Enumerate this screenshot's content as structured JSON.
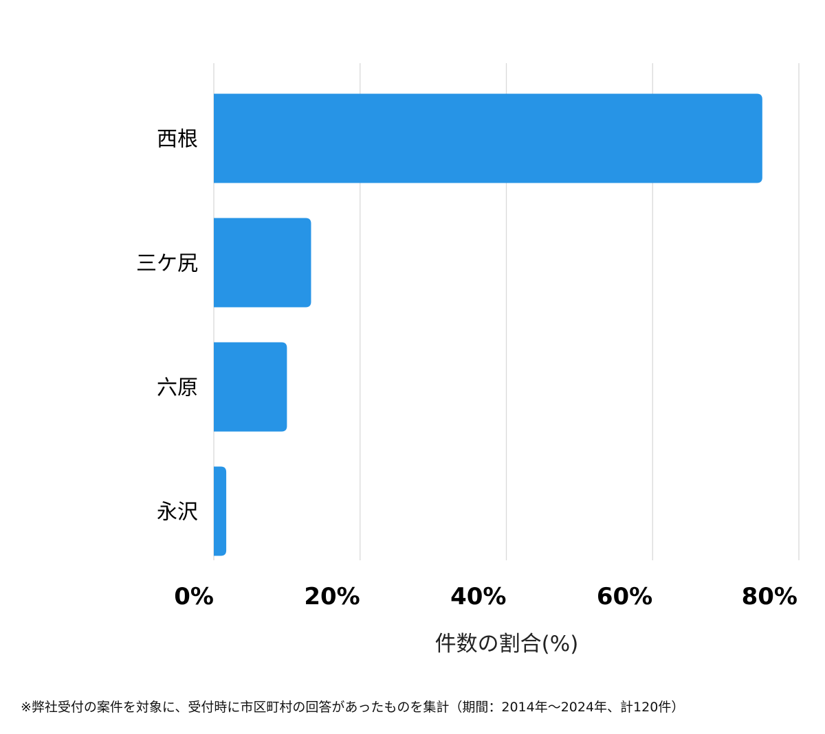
{
  "chart_data": {
    "type": "bar",
    "orientation": "horizontal",
    "categories": [
      "西根",
      "三ケ尻",
      "六原",
      "永沢"
    ],
    "values": [
      75,
      13.3,
      10,
      1.7
    ],
    "xlim": [
      0,
      80
    ],
    "xticks": [
      0,
      20,
      40,
      60,
      80
    ],
    "tick_labels": [
      "0%",
      "20%",
      "40%",
      "60%",
      "80%"
    ],
    "xlabel": "件数の割合(%)",
    "grid": true,
    "bar_color": "#2794E6",
    "grid_color": "#d9d9d9"
  },
  "footnote": "※弊社受付の案件を対象に、受付時に市区町村の回答があったものを集計（期間：2014年～2024年、計120件）"
}
